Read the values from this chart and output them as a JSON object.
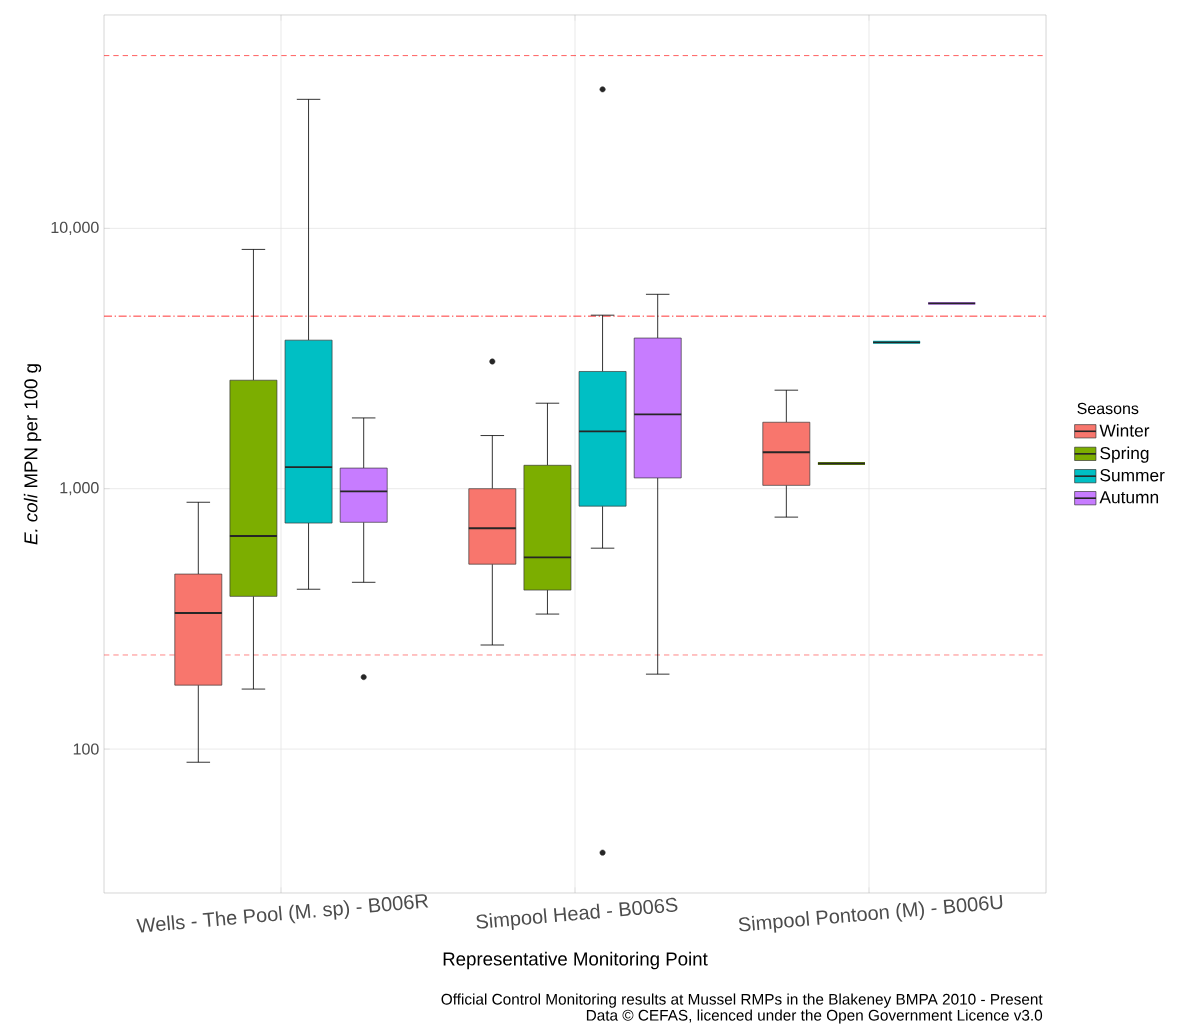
{
  "chart_data": {
    "type": "box",
    "xlabel": "Representative Monitoring Point",
    "ylabel": "*E. coli* MPN per 100 g",
    "legend_title": "Seasons",
    "legend": "right",
    "grid": true,
    "log": "y",
    "categories": [
      "Wells - The Pool (M. sp) - B006R",
      "Simpool Head - B006S",
      "Simpool Pontoon (M) - B006U"
    ],
    "ylim": [
      28,
      66000
    ],
    "yticks": [
      {
        "value": 100,
        "label": "100"
      },
      {
        "value": 1000,
        "label": "1,000"
      },
      {
        "value": 10000,
        "label": "10,000"
      }
    ],
    "series": [
      {
        "name": "Winter",
        "color": "#f8766d",
        "boxes": [
          {
            "low": 89,
            "q1": 176,
            "median": 333,
            "q3": 470,
            "high": 887
          },
          {
            "low": 251,
            "q1": 513,
            "median": 705,
            "q3": 1000,
            "high": 1600,
            "outliers": [
              3080
            ]
          },
          {
            "low": 778,
            "q1": 1030,
            "median": 1380,
            "q3": 1800,
            "high": 2390
          }
        ]
      },
      {
        "name": "Spring",
        "color": "#7cae00",
        "boxes": [
          {
            "low": 170,
            "q1": 386,
            "median": 658,
            "q3": 2610,
            "high": 8300
          },
          {
            "low": 330,
            "q1": 408,
            "median": 545,
            "q3": 1230,
            "high": 2130
          },
          {
            "low": 1250,
            "q1": 1250,
            "median": 1250,
            "q3": 1250,
            "high": 1250
          }
        ]
      },
      {
        "name": "Summer",
        "color": "#00bfc4",
        "boxes": [
          {
            "low": 411,
            "q1": 738,
            "median": 1210,
            "q3": 3720,
            "high": 31300
          },
          {
            "low": 591,
            "q1": 857,
            "median": 1660,
            "q3": 2820,
            "high": 4640,
            "outliers": [
              34200,
              40
            ]
          },
          {
            "low": 3650,
            "q1": 3650,
            "median": 3650,
            "q3": 3650,
            "high": 3650
          }
        ]
      },
      {
        "name": "Autumn",
        "color": "#c77cff",
        "boxes": [
          {
            "low": 437,
            "q1": 743,
            "median": 977,
            "q3": 1200,
            "high": 1870,
            "outliers": [
              189
            ]
          },
          {
            "low": 194,
            "q1": 1100,
            "median": 1930,
            "q3": 3790,
            "high": 5580
          },
          {
            "low": 5150,
            "q1": 5150,
            "median": 5150,
            "q3": 5150,
            "high": 5150
          }
        ]
      }
    ],
    "ref_lines": [
      {
        "axis": "y",
        "value": 46000,
        "color": "#ff0000",
        "line_style": "dashed"
      },
      {
        "axis": "y",
        "value": 4600,
        "color": "#ff0000",
        "line_style": "dashdot"
      },
      {
        "axis": "y",
        "value": 230,
        "color": "#ff0000",
        "line_style": "dashed"
      }
    ],
    "annotations": [
      "Official Control Monitoring results at Mussel RMPs in the Blakeney BMPA 2010 - Present",
      "Data © CEFAS, licenced under the Open Government Licence v3.0"
    ]
  }
}
